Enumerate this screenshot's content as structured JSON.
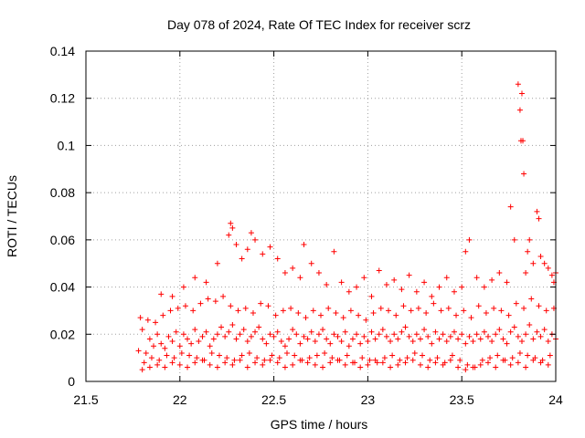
{
  "chart_data": {
    "type": "scatter",
    "title": "Day 078 of 2024, Rate Of TEC Index for receiver scrz",
    "xlabel": "GPS time / hours",
    "ylabel": "ROTI / TECUs",
    "xlim": [
      21.5,
      24
    ],
    "ylim": [
      0,
      0.14
    ],
    "xticks": [
      21.5,
      22,
      22.5,
      23,
      23.5,
      24
    ],
    "xtick_labels": [
      "21.5",
      "22",
      "22.5",
      "23",
      "23.5",
      "24"
    ],
    "yticks": [
      0,
      0.02,
      0.04,
      0.06,
      0.08,
      0.1,
      0.12,
      0.14
    ],
    "ytick_labels": [
      "0",
      "0.02",
      "0.04",
      "0.06",
      "0.08",
      "0.1",
      "0.12",
      "0.14"
    ],
    "grid": true,
    "marker": "+",
    "color": "#ff0000",
    "series": [
      {
        "name": "ROTI",
        "x": [
          21.78,
          21.8,
          21.82,
          21.84,
          21.86,
          21.88,
          21.9,
          21.92,
          21.94,
          21.96,
          21.98,
          22.0,
          22.02,
          22.04,
          22.06,
          22.08,
          22.1,
          22.12,
          22.14,
          22.16,
          22.18,
          22.2,
          22.22,
          22.24,
          22.26,
          22.28,
          22.3,
          22.32,
          22.34,
          22.36,
          22.38,
          22.4,
          22.42,
          22.44,
          22.46,
          22.48,
          22.5,
          22.52,
          22.54,
          22.56,
          22.58,
          22.6,
          22.62,
          22.64,
          22.66,
          22.68,
          22.7,
          22.72,
          22.74,
          22.76,
          22.78,
          22.8,
          22.82,
          22.84,
          22.86,
          22.88,
          22.9,
          22.92,
          22.94,
          22.96,
          22.98,
          23.0,
          23.02,
          23.04,
          23.06,
          23.08,
          23.1,
          23.12,
          23.14,
          23.16,
          23.18,
          23.2,
          23.22,
          23.24,
          23.26,
          23.28,
          23.3,
          23.32,
          23.34,
          23.36,
          23.38,
          23.4,
          23.42,
          23.44,
          23.46,
          23.48,
          23.5,
          23.52,
          23.54,
          23.56,
          23.58,
          23.6,
          23.62,
          23.64,
          23.66,
          23.68,
          23.7,
          23.72,
          23.74,
          23.76,
          23.78,
          23.8,
          23.82,
          23.84,
          23.86,
          23.88,
          23.9,
          23.92,
          23.94,
          23.96,
          23.98,
          24.0,
          21.79,
          21.83,
          21.87,
          21.91,
          21.95,
          21.99,
          22.03,
          22.07,
          22.11,
          22.15,
          22.19,
          22.23,
          22.27,
          22.31,
          22.35,
          22.39,
          22.43,
          22.47,
          22.51,
          22.55,
          22.59,
          22.63,
          22.67,
          22.71,
          22.75,
          22.79,
          22.83,
          22.87,
          22.91,
          22.95,
          22.99,
          23.03,
          23.07,
          23.11,
          23.15,
          23.19,
          23.23,
          23.27,
          23.31,
          23.35,
          23.39,
          23.43,
          23.47,
          23.51,
          23.55,
          23.59,
          23.63,
          23.67,
          23.71,
          23.75,
          23.79,
          23.83,
          23.87,
          23.91,
          23.95,
          23.99,
          21.81,
          21.85,
          21.89,
          21.93,
          21.97,
          22.01,
          22.05,
          22.09,
          22.13,
          22.17,
          22.21,
          22.25,
          22.29,
          22.33,
          22.37,
          22.41,
          22.45,
          22.49,
          22.53,
          22.57,
          22.61,
          22.65,
          22.69,
          22.73,
          22.77,
          22.81,
          22.85,
          22.89,
          22.93,
          22.97,
          23.01,
          23.05,
          23.09,
          23.13,
          23.17,
          23.21,
          23.25,
          23.29,
          23.33,
          23.37,
          23.41,
          23.45,
          23.49,
          23.53,
          23.57,
          23.61,
          23.65,
          23.69,
          23.73,
          23.77,
          23.81,
          23.85,
          23.89,
          23.93,
          23.97,
          21.9,
          21.96,
          22.02,
          22.08,
          22.14,
          22.2,
          22.26,
          22.27,
          22.28,
          22.3,
          22.33,
          22.36,
          22.38,
          22.4,
          22.44,
          22.48,
          22.52,
          22.56,
          22.6,
          22.64,
          22.66,
          22.7,
          22.74,
          22.78,
          22.82,
          22.86,
          22.9,
          22.94,
          22.98,
          23.02,
          23.06,
          23.1,
          23.14,
          23.18,
          23.22,
          23.26,
          23.3,
          23.34,
          23.38,
          23.42,
          23.46,
          23.5,
          23.52,
          23.54,
          23.58,
          23.62,
          23.66,
          23.7,
          23.74,
          23.76,
          23.78,
          23.8,
          23.81,
          23.815,
          23.82,
          23.825,
          23.83,
          23.84,
          23.85,
          23.86,
          23.88,
          23.9,
          23.91,
          23.92,
          23.94,
          23.96,
          23.98,
          23.99,
          24.0,
          21.8,
          21.84,
          21.88,
          21.92,
          21.96,
          22.0,
          22.04,
          22.08,
          22.12,
          22.16,
          22.2,
          22.24,
          22.28,
          22.32,
          22.36,
          22.4,
          22.44,
          22.48,
          22.52,
          22.56,
          22.6,
          22.64,
          22.68,
          22.72,
          22.76,
          22.8,
          22.84,
          22.88,
          22.92,
          22.96,
          23.0,
          23.04,
          23.08,
          23.12,
          23.16,
          23.2,
          23.24,
          23.28,
          23.32,
          23.36,
          23.4,
          23.44,
          23.48,
          23.52,
          23.56,
          23.6,
          23.64,
          23.68,
          23.72,
          23.76,
          23.8,
          23.84,
          23.88,
          23.92,
          23.96
        ],
        "y": [
          0.013,
          0.022,
          0.012,
          0.018,
          0.015,
          0.02,
          0.016,
          0.014,
          0.019,
          0.017,
          0.021,
          0.015,
          0.02,
          0.018,
          0.016,
          0.022,
          0.017,
          0.019,
          0.021,
          0.015,
          0.018,
          0.02,
          0.023,
          0.019,
          0.021,
          0.024,
          0.018,
          0.02,
          0.022,
          0.017,
          0.019,
          0.021,
          0.023,
          0.018,
          0.016,
          0.02,
          0.019,
          0.021,
          0.017,
          0.015,
          0.018,
          0.022,
          0.02,
          0.016,
          0.019,
          0.018,
          0.021,
          0.017,
          0.02,
          0.022,
          0.018,
          0.016,
          0.02,
          0.019,
          0.017,
          0.021,
          0.015,
          0.018,
          0.02,
          0.016,
          0.019,
          0.017,
          0.021,
          0.018,
          0.02,
          0.022,
          0.019,
          0.017,
          0.02,
          0.018,
          0.021,
          0.023,
          0.019,
          0.017,
          0.02,
          0.018,
          0.022,
          0.019,
          0.016,
          0.021,
          0.018,
          0.02,
          0.017,
          0.019,
          0.021,
          0.018,
          0.02,
          0.016,
          0.019,
          0.017,
          0.02,
          0.018,
          0.021,
          0.019,
          0.017,
          0.02,
          0.022,
          0.018,
          0.016,
          0.021,
          0.023,
          0.019,
          0.017,
          0.02,
          0.024,
          0.018,
          0.021,
          0.019,
          0.022,
          0.017,
          0.02,
          0.018,
          0.027,
          0.026,
          0.025,
          0.028,
          0.03,
          0.031,
          0.032,
          0.03,
          0.033,
          0.035,
          0.034,
          0.036,
          0.032,
          0.03,
          0.031,
          0.029,
          0.033,
          0.032,
          0.028,
          0.03,
          0.031,
          0.029,
          0.027,
          0.03,
          0.028,
          0.031,
          0.029,
          0.027,
          0.03,
          0.028,
          0.026,
          0.029,
          0.031,
          0.03,
          0.028,
          0.032,
          0.03,
          0.031,
          0.029,
          0.033,
          0.03,
          0.031,
          0.028,
          0.03,
          0.027,
          0.032,
          0.029,
          0.031,
          0.03,
          0.028,
          0.033,
          0.031,
          0.035,
          0.032,
          0.03,
          0.031,
          0.008,
          0.01,
          0.009,
          0.011,
          0.01,
          0.012,
          0.011,
          0.01,
          0.009,
          0.012,
          0.011,
          0.01,
          0.009,
          0.011,
          0.012,
          0.01,
          0.009,
          0.011,
          0.01,
          0.012,
          0.011,
          0.009,
          0.01,
          0.011,
          0.012,
          0.01,
          0.009,
          0.011,
          0.008,
          0.01,
          0.009,
          0.008,
          0.01,
          0.011,
          0.009,
          0.01,
          0.012,
          0.011,
          0.009,
          0.01,
          0.008,
          0.011,
          0.009,
          0.007,
          0.006,
          0.009,
          0.01,
          0.011,
          0.009,
          0.01,
          0.012,
          0.011,
          0.01,
          0.009,
          0.011,
          0.037,
          0.036,
          0.04,
          0.044,
          0.042,
          0.05,
          0.062,
          0.067,
          0.065,
          0.058,
          0.052,
          0.056,
          0.063,
          0.06,
          0.054,
          0.057,
          0.052,
          0.046,
          0.048,
          0.044,
          0.058,
          0.05,
          0.046,
          0.041,
          0.055,
          0.042,
          0.038,
          0.04,
          0.044,
          0.036,
          0.047,
          0.041,
          0.043,
          0.039,
          0.045,
          0.038,
          0.042,
          0.036,
          0.04,
          0.044,
          0.038,
          0.04,
          0.055,
          0.06,
          0.044,
          0.04,
          0.043,
          0.046,
          0.042,
          0.074,
          0.06,
          0.126,
          0.115,
          0.102,
          0.122,
          0.102,
          0.088,
          0.046,
          0.055,
          0.06,
          0.05,
          0.072,
          0.069,
          0.053,
          0.05,
          0.048,
          0.045,
          0.042,
          0.046,
          0.005,
          0.006,
          0.007,
          0.006,
          0.008,
          0.007,
          0.006,
          0.008,
          0.009,
          0.007,
          0.006,
          0.008,
          0.007,
          0.009,
          0.006,
          0.008,
          0.007,
          0.009,
          0.008,
          0.006,
          0.007,
          0.009,
          0.008,
          0.007,
          0.006,
          0.008,
          0.009,
          0.007,
          0.008,
          0.006,
          0.007,
          0.009,
          0.008,
          0.006,
          0.007,
          0.008,
          0.009,
          0.007,
          0.006,
          0.008,
          0.007,
          0.009,
          0.006,
          0.005,
          0.006,
          0.007,
          0.008,
          0.006,
          0.009,
          0.007,
          0.008,
          0.006,
          0.009,
          0.008,
          0.007
        ]
      }
    ]
  }
}
